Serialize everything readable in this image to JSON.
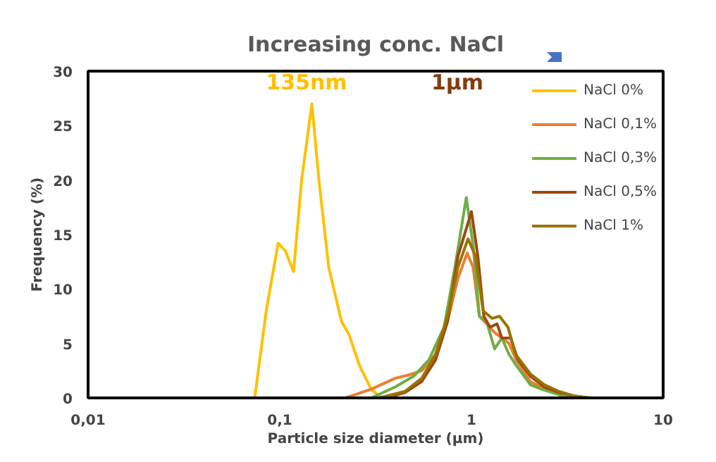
{
  "chart_data": {
    "type": "line",
    "title": "Increasing conc. NaCl",
    "xlabel": "Particle size diameter (µm)",
    "ylabel": "Frequency (%)",
    "log": "x",
    "xlim": [
      0.01,
      10
    ],
    "xticks": [
      {
        "value": 0.01,
        "label": "0,01"
      },
      {
        "value": 0.1,
        "label": "0,1"
      },
      1,
      10
    ],
    "ylim": [
      0,
      30
    ],
    "yticks": [
      0,
      5,
      10,
      15,
      20,
      25,
      30
    ],
    "grid": false,
    "legend": "top right",
    "marker": "none",
    "line_style": "solid",
    "annotations": [
      "135nm",
      "1µm"
    ],
    "series": [
      {
        "name": "NaCl 0%",
        "color": "#ffc000",
        "x": [
          0.01,
          0.074,
          0.085,
          0.098,
          0.107,
          0.118,
          0.13,
          0.147,
          0.16,
          0.18,
          0.21,
          0.23,
          0.26,
          0.3,
          0.34,
          6
        ],
        "values": [
          0,
          0,
          8,
          14.2,
          13.5,
          11.6,
          20,
          27,
          20,
          12,
          7,
          5.8,
          3,
          0.8,
          0,
          0
        ]
      },
      {
        "name": "NaCl 0,1%",
        "color": "#ed7d31",
        "x": [
          0.22,
          0.3,
          0.4,
          0.47,
          0.55,
          0.65,
          0.75,
          0.85,
          0.95,
          1.02,
          1.1,
          1.2,
          1.32,
          1.44,
          1.57,
          1.71,
          2.03,
          2.41,
          2.86,
          3.4
        ],
        "values": [
          0,
          0.8,
          1.8,
          2.1,
          2.5,
          4,
          7,
          11,
          13.3,
          12,
          7.5,
          6.8,
          6,
          5.5,
          5,
          3.5,
          1.5,
          0.8,
          0.3,
          0
        ]
      },
      {
        "name": "NaCl 0,3%",
        "color": "#70ad47",
        "x": [
          0.3,
          0.4,
          0.5,
          0.6,
          0.72,
          0.82,
          0.94,
          1.02,
          1.1,
          1.2,
          1.32,
          1.44,
          1.57,
          1.71,
          2.03,
          2.41,
          2.86,
          3.4
        ],
        "values": [
          0,
          1,
          2,
          3.5,
          6.5,
          12,
          18.4,
          14,
          7.5,
          7,
          4.5,
          5.5,
          4,
          3,
          1.2,
          0.7,
          0.3,
          0
        ]
      },
      {
        "name": "NaCl 0,5%",
        "color": "#9e480e",
        "x": [
          0.36,
          0.45,
          0.55,
          0.65,
          0.75,
          0.85,
          1.0,
          1.08,
          1.16,
          1.25,
          1.36,
          1.44,
          1.6,
          1.75,
          2.03,
          2.4,
          2.86,
          3.4,
          4.0
        ],
        "values": [
          0,
          0.5,
          1.5,
          3.5,
          7,
          13,
          17.1,
          13,
          7.5,
          6.5,
          6.8,
          5.5,
          5.5,
          3.5,
          2,
          1,
          0.5,
          0.2,
          0
        ]
      },
      {
        "name": "NaCl 1%",
        "color": "#997300",
        "x": [
          0.01,
          0.33,
          0.45,
          0.55,
          0.65,
          0.75,
          0.85,
          0.96,
          1.05,
          1.15,
          1.28,
          1.4,
          1.55,
          1.7,
          2.03,
          2.4,
          2.86,
          3.4,
          4.2
        ],
        "values": [
          0,
          0,
          0.6,
          1.8,
          4,
          7.5,
          12,
          14.6,
          13,
          8,
          7.3,
          7.5,
          6.5,
          4,
          2.2,
          1.2,
          0.6,
          0.2,
          0
        ]
      }
    ]
  }
}
